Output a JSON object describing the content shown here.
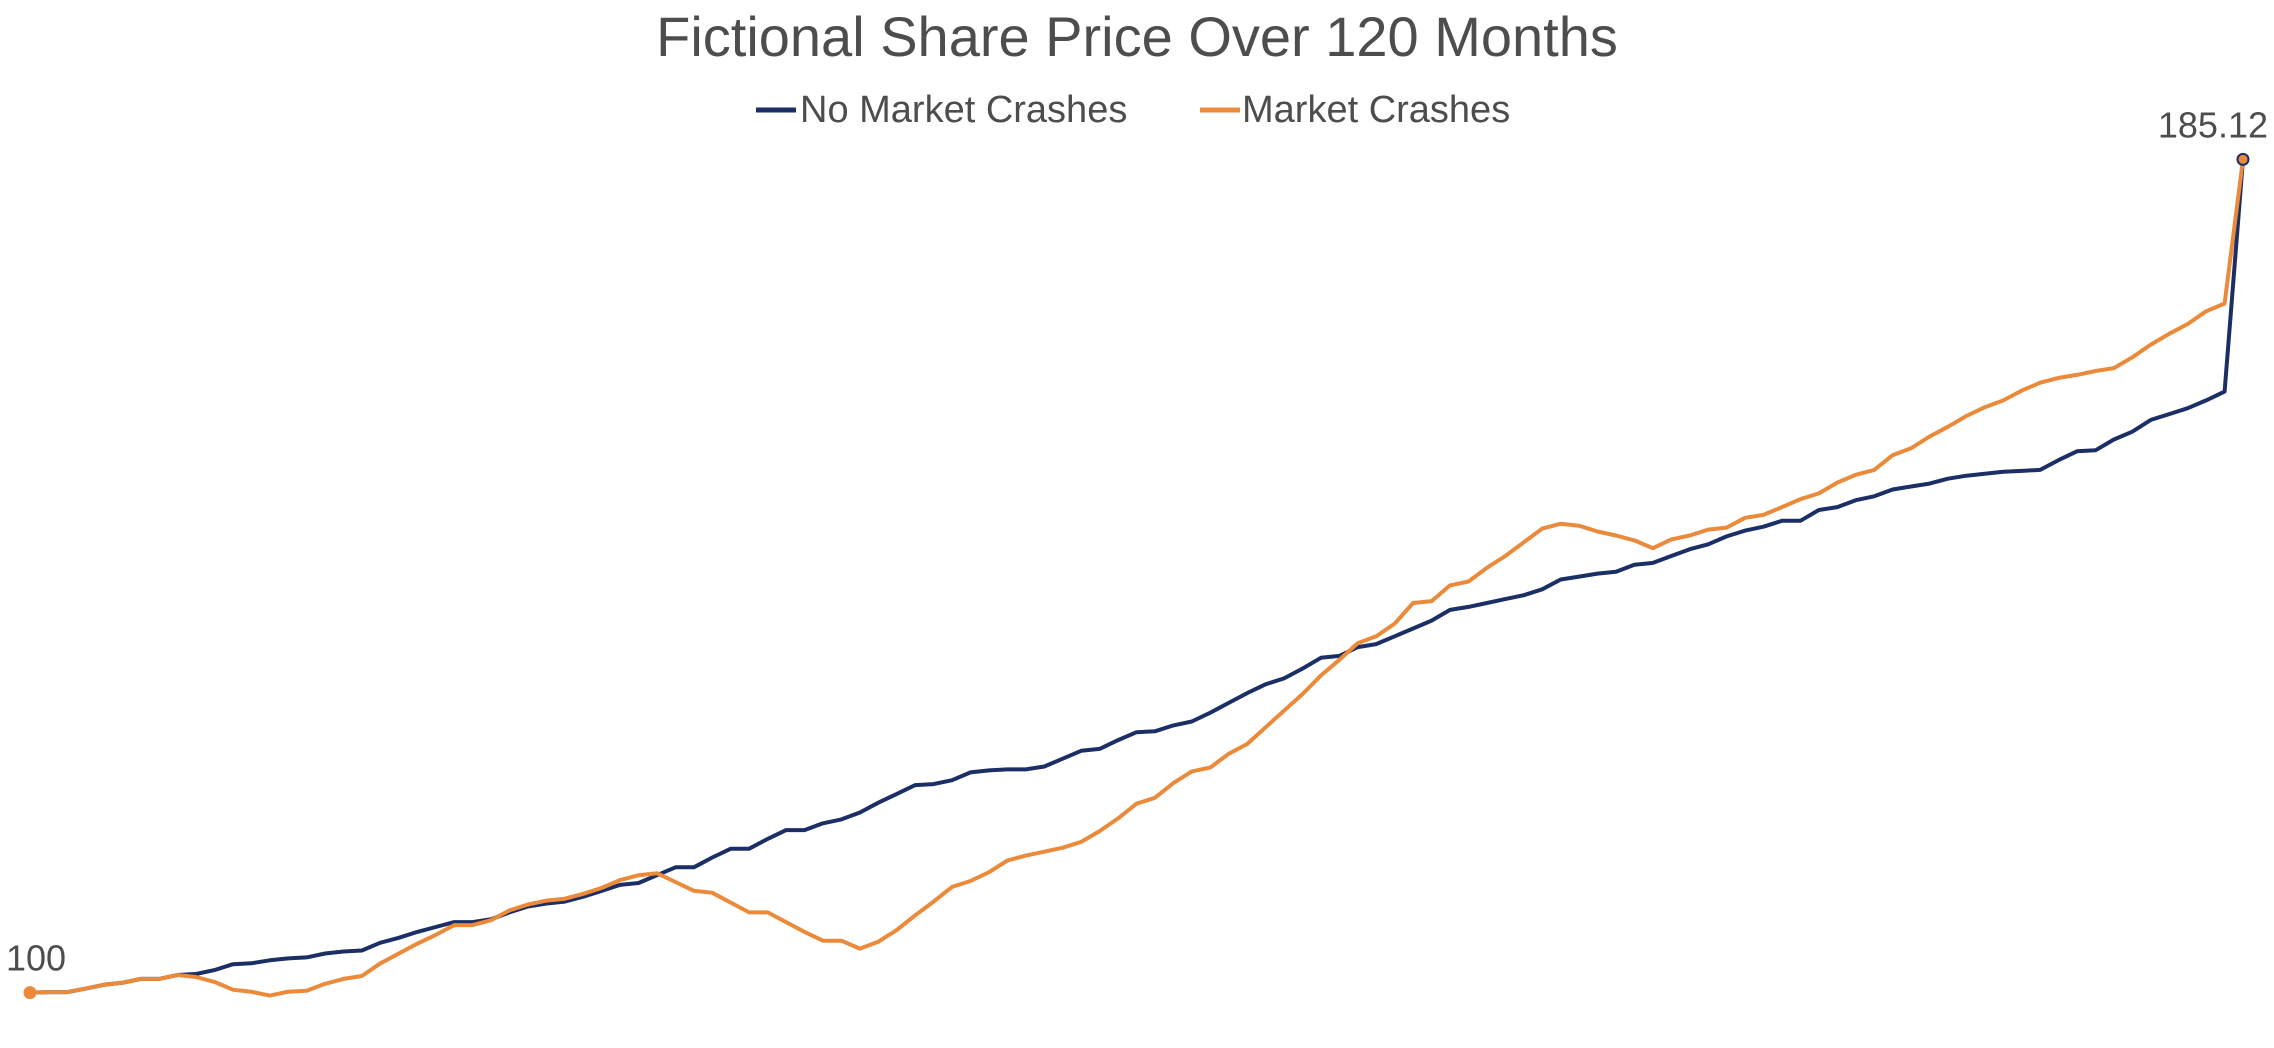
{
  "chart_data": {
    "type": "line",
    "title": "Fictional Share Price Over 120 Months",
    "xlabel": "",
    "ylabel": "",
    "x_axis_visible": false,
    "y_axis_visible": false,
    "grid": false,
    "legend_position": "top-center",
    "ylim": [
      97,
      192
    ],
    "x": [
      0,
      1,
      2,
      3,
      4,
      5,
      6,
      7,
      8,
      9,
      10,
      11,
      12,
      13,
      14,
      15,
      16,
      17,
      18,
      19,
      20,
      21,
      22,
      23,
      24,
      25,
      26,
      27,
      28,
      29,
      30,
      31,
      32,
      33,
      34,
      35,
      36,
      37,
      38,
      39,
      40,
      41,
      42,
      43,
      44,
      45,
      46,
      47,
      48,
      49,
      50,
      51,
      52,
      53,
      54,
      55,
      56,
      57,
      58,
      59,
      60,
      61,
      62,
      63,
      64,
      65,
      66,
      67,
      68,
      69,
      70,
      71,
      72,
      73,
      74,
      75,
      76,
      77,
      78,
      79,
      80,
      81,
      82,
      83,
      84,
      85,
      86,
      87,
      88,
      89,
      90,
      91,
      92,
      93,
      94,
      95,
      96,
      97,
      98,
      99,
      100,
      101,
      102,
      103,
      104,
      105,
      106,
      107,
      108,
      109,
      110,
      111,
      112,
      113,
      114,
      115,
      116,
      117,
      118,
      119,
      120
    ],
    "series": [
      {
        "name": "No Market Crashes",
        "color": "#1b2f66",
        "values": [
          100,
          100.05,
          100.05,
          100.4,
          100.8,
          101,
          101.4,
          101.4,
          101.8,
          101.9,
          102.3,
          102.9,
          103,
          103.3,
          103.5,
          103.6,
          104,
          104.2,
          104.3,
          105.1,
          105.6,
          106.2,
          106.7,
          107.2,
          107.2,
          107.5,
          108.2,
          108.8,
          109.1,
          109.3,
          109.8,
          110.4,
          111,
          111.2,
          112,
          112.8,
          112.8,
          113.8,
          114.7,
          114.7,
          115.7,
          116.6,
          116.6,
          117.3,
          117.7,
          118.4,
          119.4,
          120.3,
          121.2,
          121.3,
          121.7,
          122.5,
          122.7,
          122.8,
          122.8,
          123.1,
          123.9,
          124.7,
          124.9,
          125.8,
          126.6,
          126.7,
          127.3,
          127.7,
          128.6,
          129.6,
          130.6,
          131.5,
          132.1,
          133.1,
          134.2,
          134.4,
          135.3,
          135.6,
          136.4,
          137.2,
          138,
          139.1,
          139.4,
          139.8,
          140.2,
          140.6,
          141.2,
          142.2,
          142.5,
          142.8,
          143,
          143.7,
          143.9,
          144.6,
          145.3,
          145.8,
          146.6,
          147.2,
          147.6,
          148.2,
          148.2,
          149.3,
          149.6,
          150.3,
          150.7,
          151.4,
          151.7,
          152,
          152.5,
          152.8,
          153,
          153.2,
          153.3,
          153.4,
          154.4,
          155.3,
          155.4,
          156.5,
          157.3,
          158.5,
          159.1,
          159.7,
          160.5,
          161.4,
          185.12
        ],
        "start_label": "100",
        "end_label": "185.12"
      },
      {
        "name": "Market Crashes",
        "color": "#ea8a3a",
        "values": [
          100,
          100.05,
          100.05,
          100.4,
          100.8,
          101,
          101.4,
          101.4,
          101.8,
          101.6,
          101.1,
          100.3,
          100.1,
          99.7,
          100.1,
          100.2,
          100.9,
          101.4,
          101.7,
          103,
          104,
          105,
          105.9,
          106.9,
          106.9,
          107.4,
          108.4,
          109,
          109.4,
          109.6,
          110.1,
          110.7,
          111.5,
          112,
          112.2,
          111.3,
          110.4,
          110.2,
          109.2,
          108.2,
          108.2,
          107.2,
          106.2,
          105.3,
          105.3,
          104.5,
          105.2,
          106.4,
          107.9,
          109.3,
          110.8,
          111.4,
          112.3,
          113.5,
          114,
          114.4,
          114.8,
          115.4,
          116.5,
          117.8,
          119.3,
          119.9,
          121.4,
          122.6,
          123,
          124.4,
          125.4,
          127.1,
          128.8,
          130.5,
          132.4,
          134,
          135.7,
          136.4,
          137.7,
          139.8,
          140,
          141.6,
          142,
          143.4,
          144.6,
          146,
          147.4,
          147.9,
          147.7,
          147.1,
          146.7,
          146.2,
          145.4,
          146.3,
          146.7,
          147.3,
          147.5,
          148.5,
          148.8,
          149.6,
          150.4,
          151,
          152.1,
          152.9,
          153.4,
          154.9,
          155.6,
          156.8,
          157.8,
          158.9,
          159.8,
          160.5,
          161.5,
          162.3,
          162.8,
          163.1,
          163.5,
          163.8,
          164.9,
          166.2,
          167.3,
          168.3,
          169.6,
          170.4,
          185.12
        ]
      }
    ]
  }
}
